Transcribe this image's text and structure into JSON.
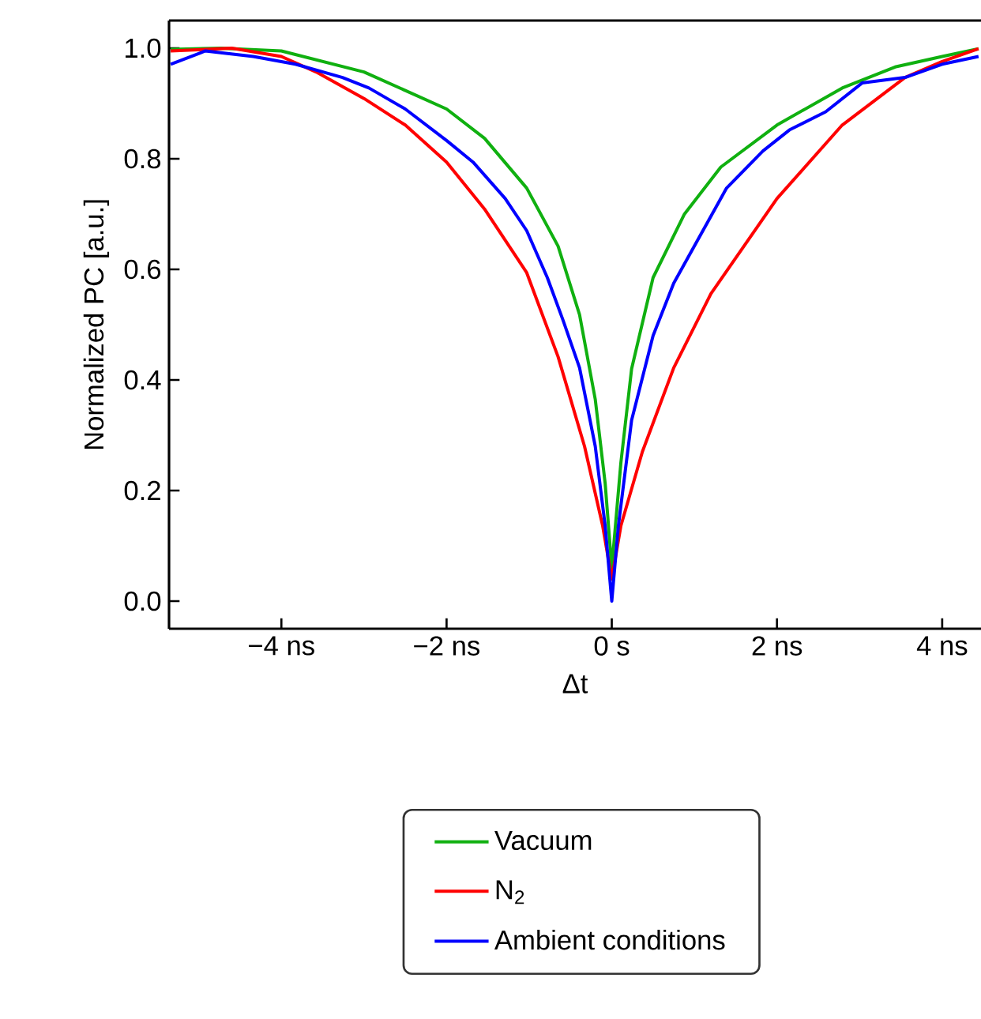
{
  "chart_data": {
    "type": "line",
    "xlabel": "Δt",
    "ylabel": "Normalized PC [a.u.]",
    "xlim": [
      -5.36,
      4.47
    ],
    "ylim": [
      -0.05,
      1.05
    ],
    "xticks": [
      {
        "value": -4,
        "label": "−4 ns"
      },
      {
        "value": -2,
        "label": "−2 ns"
      },
      {
        "value": 0,
        "label": "0 s"
      },
      {
        "value": 2,
        "label": "2 ns"
      },
      {
        "value": 4,
        "label": "4 ns"
      }
    ],
    "yticks": [
      {
        "value": 0,
        "label": "0.0"
      },
      {
        "value": 0.2,
        "label": "0.2"
      },
      {
        "value": 0.4,
        "label": "0.4"
      },
      {
        "value": 0.6,
        "label": "0.6"
      },
      {
        "value": 0.8,
        "label": "0.8"
      },
      {
        "value": 1.0,
        "label": "1.0"
      }
    ],
    "legend": "bottom",
    "series": [
      {
        "name": "Vacuum",
        "color": "#10b010",
        "x": [
          -5.34,
          -4.73,
          -4,
          -3.0,
          -2.0,
          -1.54,
          -1.03,
          -0.65,
          -0.39,
          -0.2,
          -0.08,
          0,
          0.11,
          0.24,
          0.5,
          0.88,
          1.32,
          2,
          2.79,
          3.43,
          4,
          4.44
        ],
        "values": [
          0.998,
          1.0,
          0.995,
          0.957,
          0.89,
          0.837,
          0.747,
          0.642,
          0.518,
          0.365,
          0.213,
          0.06,
          0.25,
          0.42,
          0.585,
          0.7,
          0.785,
          0.861,
          0.928,
          0.966,
          0.985,
          0.999
        ]
      },
      {
        "name": "N$_{2}$",
        "color": "#ff0000",
        "x": [
          -5.34,
          -4.6,
          -4,
          -3.58,
          -3.0,
          -2.5,
          -2,
          -1.54,
          -1.03,
          -0.65,
          -0.33,
          -0.11,
          0,
          0.11,
          0.37,
          0.75,
          1.2,
          2,
          2.79,
          3.55,
          4,
          4.44
        ],
        "values": [
          0.995,
          1.0,
          0.985,
          0.957,
          0.909,
          0.861,
          0.794,
          0.709,
          0.594,
          0.442,
          0.28,
          0.136,
          0.04,
          0.136,
          0.27,
          0.422,
          0.556,
          0.728,
          0.861,
          0.947,
          0.976,
          0.999
        ]
      },
      {
        "name": "Ambient conditions",
        "color": "#0000ff",
        "x": [
          -5.34,
          -4.92,
          -4.34,
          -3.83,
          -3.26,
          -2.94,
          -2.5,
          -2,
          -1.68,
          -1.29,
          -1.03,
          -0.78,
          -0.59,
          -0.39,
          -0.2,
          -0.08,
          0,
          0.08,
          0.24,
          0.5,
          0.75,
          1.07,
          1.39,
          1.83,
          2.15,
          2.59,
          3.03,
          3.55,
          4,
          4.44
        ],
        "values": [
          0.971,
          0.995,
          0.985,
          0.971,
          0.947,
          0.928,
          0.89,
          0.833,
          0.794,
          0.728,
          0.67,
          0.585,
          0.508,
          0.422,
          0.28,
          0.136,
          0.0,
          0.136,
          0.327,
          0.48,
          0.575,
          0.661,
          0.747,
          0.814,
          0.852,
          0.885,
          0.937,
          0.947,
          0.971,
          0.985
        ]
      }
    ]
  }
}
